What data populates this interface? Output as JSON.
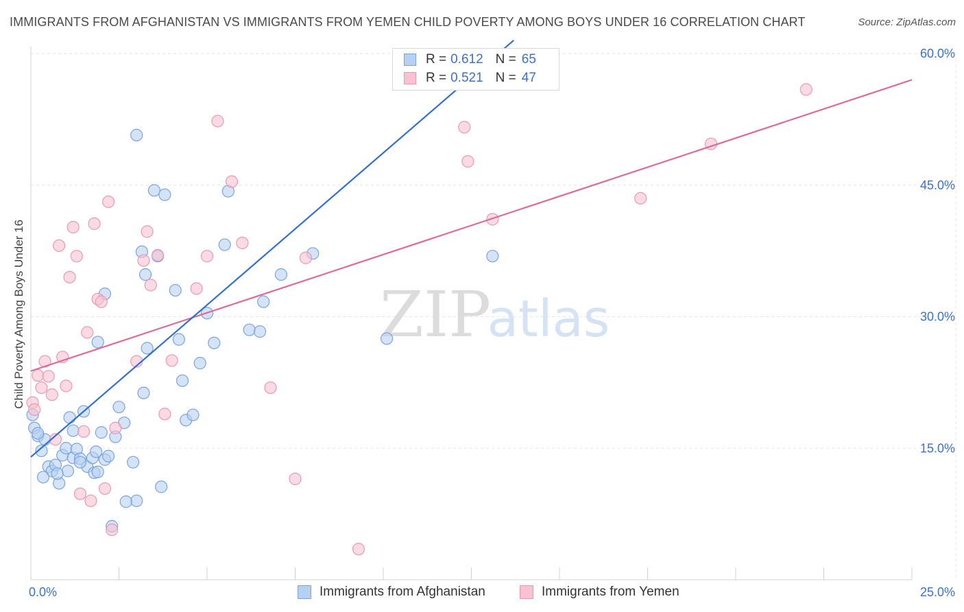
{
  "title": "IMMIGRANTS FROM AFGHANISTAN VS IMMIGRANTS FROM YEMEN CHILD POVERTY AMONG BOYS UNDER 16 CORRELATION CHART",
  "source": "Source: ZipAtlas.com",
  "colors": {
    "afghanistan_fill": "#b8d0f0",
    "afghanistan_stroke": "#7aa4de",
    "afghanistan_line": "#2f6fcf",
    "yemen_fill": "#f7c3d2",
    "yemen_stroke": "#ec98b2",
    "yemen_line": "#e06a96",
    "axis_label": "#3a72c8",
    "grid": "#e6e6e6"
  },
  "legend": {
    "rows": [
      {
        "r_label": "R =",
        "r_value": "0.612",
        "n_label": "N =",
        "n_value": "65"
      },
      {
        "r_label": "R =",
        "r_value": "0.521",
        "n_label": "N =",
        "n_value": "47"
      }
    ]
  },
  "chart_data": {
    "type": "scatter",
    "title": "IMMIGRANTS FROM AFGHANISTAN VS IMMIGRANTS FROM YEMEN CHILD POVERTY AMONG BOYS UNDER 16 CORRELATION CHART",
    "xlabel": "",
    "ylabel": "Child Poverty Among Boys Under 16",
    "xlim": [
      0,
      25
    ],
    "ylim": [
      0,
      60
    ],
    "x_tick_labels": [
      "0.0%",
      "25.0%"
    ],
    "y_ticks": [
      15,
      30,
      45,
      60
    ],
    "y_tick_labels": [
      "15.0%",
      "30.0%",
      "45.0%",
      "60.0%"
    ],
    "grid": true,
    "legend_position": "top-center",
    "watermark": {
      "zip": "ZIP",
      "atlas": "atlas"
    },
    "series": [
      {
        "name": "Immigrants from Afghanistan",
        "color": "#b8d0f0",
        "trend": {
          "x": [
            0.0,
            13.7
          ],
          "y": [
            14.0,
            61.5
          ]
        },
        "points": [
          [
            0.05,
            18.8
          ],
          [
            0.1,
            17.3
          ],
          [
            0.2,
            16.4
          ],
          [
            0.3,
            14.7
          ],
          [
            0.4,
            16.0
          ],
          [
            0.5,
            12.9
          ],
          [
            0.6,
            12.4
          ],
          [
            0.7,
            13.1
          ],
          [
            0.8,
            11.0
          ],
          [
            0.9,
            14.2
          ],
          [
            1.0,
            15.0
          ],
          [
            1.05,
            12.4
          ],
          [
            1.1,
            18.5
          ],
          [
            1.2,
            13.9
          ],
          [
            1.3,
            14.9
          ],
          [
            1.4,
            13.8
          ],
          [
            1.5,
            19.2
          ],
          [
            1.6,
            12.9
          ],
          [
            1.75,
            13.9
          ],
          [
            1.8,
            12.2
          ],
          [
            1.85,
            14.6
          ],
          [
            1.9,
            12.3
          ],
          [
            2.0,
            16.8
          ],
          [
            2.1,
            13.7
          ],
          [
            2.2,
            14.1
          ],
          [
            2.4,
            16.3
          ],
          [
            2.5,
            19.7
          ],
          [
            2.65,
            17.9
          ],
          [
            2.9,
            13.4
          ],
          [
            3.2,
            21.3
          ],
          [
            3.3,
            26.4
          ],
          [
            3.5,
            44.4
          ],
          [
            3.6,
            36.9
          ],
          [
            3.7,
            10.6
          ],
          [
            3.8,
            43.9
          ],
          [
            4.1,
            33.0
          ],
          [
            4.2,
            27.4
          ],
          [
            4.3,
            22.7
          ],
          [
            4.4,
            18.2
          ],
          [
            4.6,
            18.8
          ],
          [
            4.8,
            24.7
          ],
          [
            5.0,
            30.4
          ],
          [
            5.2,
            27.0
          ],
          [
            5.5,
            38.2
          ],
          [
            5.6,
            44.3
          ],
          [
            6.2,
            28.5
          ],
          [
            6.5,
            28.3
          ],
          [
            6.6,
            31.7
          ],
          [
            7.1,
            34.8
          ],
          [
            8.0,
            37.2
          ],
          [
            10.1,
            27.5
          ],
          [
            13.1,
            36.9
          ],
          [
            3.0,
            50.7
          ],
          [
            3.15,
            37.4
          ],
          [
            3.25,
            34.8
          ],
          [
            2.1,
            32.6
          ],
          [
            1.9,
            27.1
          ],
          [
            2.3,
            6.1
          ],
          [
            3.0,
            9.0
          ],
          [
            0.2,
            16.7
          ],
          [
            0.35,
            11.7
          ],
          [
            0.75,
            12.1
          ],
          [
            2.7,
            8.9
          ],
          [
            1.2,
            17.0
          ],
          [
            1.4,
            13.4
          ]
        ]
      },
      {
        "name": "Immigrants from Yemen",
        "color": "#f7c3d2",
        "trend": {
          "x": [
            0.0,
            25.0
          ],
          "y": [
            23.8,
            57.0
          ]
        },
        "points": [
          [
            0.05,
            20.2
          ],
          [
            0.1,
            19.4
          ],
          [
            0.2,
            23.3
          ],
          [
            0.3,
            21.9
          ],
          [
            0.4,
            24.9
          ],
          [
            0.5,
            23.2
          ],
          [
            0.6,
            21.1
          ],
          [
            0.7,
            16.0
          ],
          [
            0.8,
            38.1
          ],
          [
            0.9,
            25.4
          ],
          [
            1.0,
            22.1
          ],
          [
            1.1,
            34.5
          ],
          [
            1.2,
            40.2
          ],
          [
            1.3,
            36.9
          ],
          [
            1.4,
            9.8
          ],
          [
            1.5,
            16.9
          ],
          [
            1.6,
            28.2
          ],
          [
            1.7,
            9.0
          ],
          [
            1.8,
            40.6
          ],
          [
            1.9,
            32.0
          ],
          [
            2.0,
            31.7
          ],
          [
            2.1,
            10.4
          ],
          [
            2.2,
            43.1
          ],
          [
            2.3,
            5.7
          ],
          [
            2.4,
            17.3
          ],
          [
            3.0,
            24.9
          ],
          [
            3.2,
            36.4
          ],
          [
            3.3,
            39.7
          ],
          [
            3.4,
            33.6
          ],
          [
            3.6,
            37.0
          ],
          [
            3.8,
            18.9
          ],
          [
            4.0,
            25.0
          ],
          [
            4.7,
            33.2
          ],
          [
            5.0,
            36.9
          ],
          [
            5.3,
            52.3
          ],
          [
            5.7,
            45.4
          ],
          [
            6.0,
            38.4
          ],
          [
            6.8,
            21.9
          ],
          [
            7.5,
            11.5
          ],
          [
            7.8,
            36.7
          ],
          [
            9.3,
            3.5
          ],
          [
            12.3,
            51.6
          ],
          [
            12.4,
            47.7
          ],
          [
            13.1,
            41.1
          ],
          [
            17.3,
            43.5
          ],
          [
            19.3,
            49.7
          ],
          [
            22.0,
            55.9
          ]
        ]
      }
    ]
  },
  "bottom_legend": {
    "afghanistan": "Immigrants from Afghanistan",
    "yemen": "Immigrants from Yemen"
  }
}
